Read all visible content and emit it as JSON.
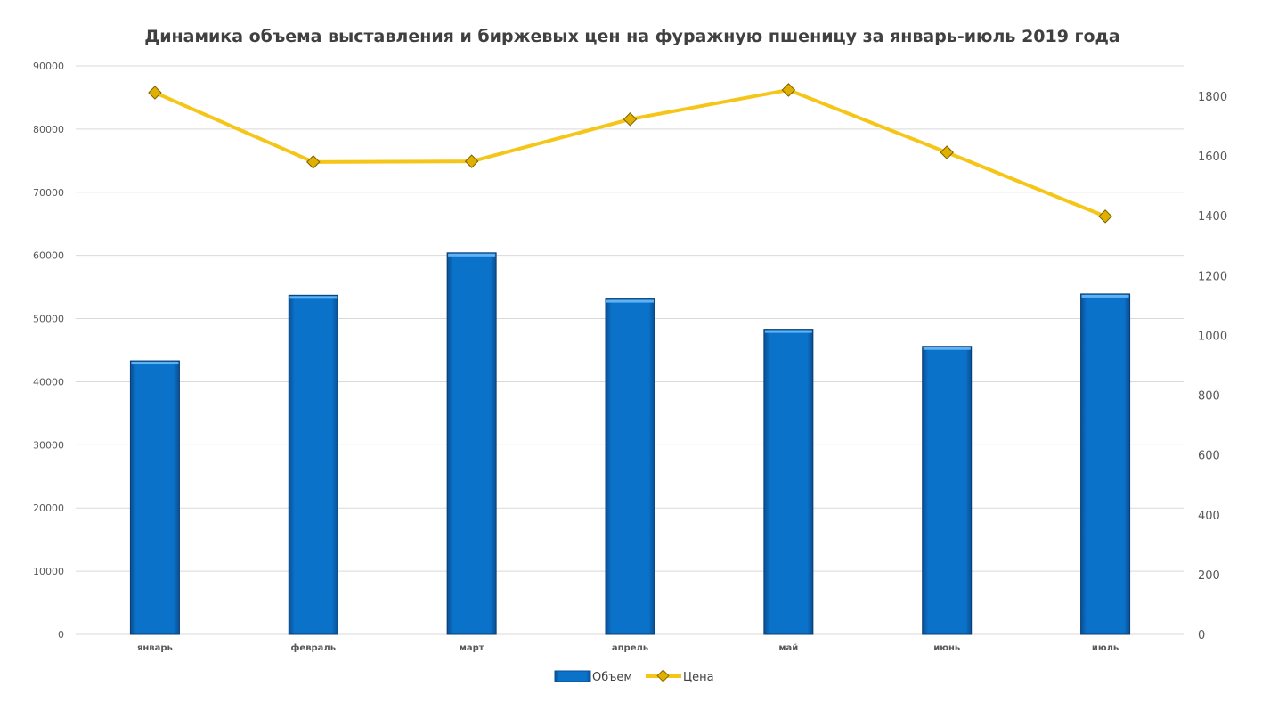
{
  "chart_data": {
    "type": "bar+line",
    "title": "Динамика объема выставления и биржевых цен на фуражную пшеницу за январь-июль 2019 года",
    "categories": [
      "январь",
      "февраль",
      "март",
      "апрель",
      "май",
      "июнь",
      "июль"
    ],
    "series": [
      {
        "name": "Объем",
        "type": "bar",
        "axis": "left",
        "color": "#0B72C9",
        "values": [
          43300,
          53700,
          60400,
          53100,
          48300,
          45600,
          53900
        ]
      },
      {
        "name": "Цена",
        "type": "line",
        "axis": "right",
        "color": "#F5C518",
        "values": [
          1812,
          1580,
          1582,
          1723,
          1821,
          1612,
          1398
        ]
      }
    ],
    "ylim_left": [
      0,
      90000
    ],
    "yticks_left": [
      0,
      10000,
      20000,
      30000,
      40000,
      50000,
      60000,
      70000,
      80000,
      90000
    ],
    "ylim_right": [
      0,
      1800
    ],
    "yticks_right": [
      0,
      200,
      400,
      600,
      800,
      1000,
      1200,
      1400,
      1600,
      1800
    ],
    "grid": true,
    "legend": "bottom"
  }
}
